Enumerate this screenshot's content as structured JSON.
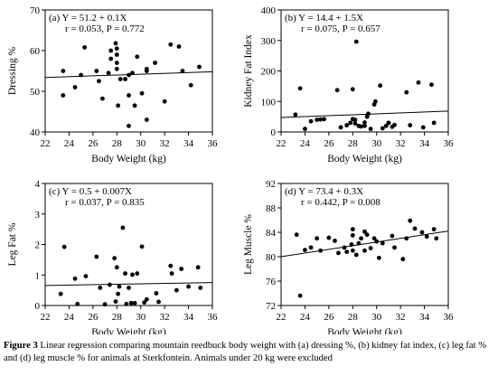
{
  "chart_data": [
    {
      "type": "scatter",
      "panel": "(a)",
      "equation": "Y = 51.2 + 0.1X",
      "stats": "r = 0.053, P = 0.772",
      "xlabel": "Body Weight (kg)",
      "ylabel": "Dressing %",
      "xlim": [
        22,
        36
      ],
      "ylim": [
        40,
        70
      ],
      "xticks": [
        22,
        24,
        26,
        28,
        30,
        32,
        34,
        36
      ],
      "yticks": [
        40,
        50,
        60,
        70
      ],
      "grid": false,
      "regression": {
        "intercept": 51.2,
        "slope": 0.1
      },
      "points": [
        [
          23.5,
          55.0
        ],
        [
          23.5,
          49.0
        ],
        [
          24.5,
          51.0
        ],
        [
          25.0,
          54.0
        ],
        [
          25.3,
          60.8
        ],
        [
          26.3,
          55.0
        ],
        [
          26.5,
          52.5
        ],
        [
          26.8,
          48.2
        ],
        [
          27.3,
          54.5
        ],
        [
          27.5,
          58.0
        ],
        [
          27.5,
          60.0
        ],
        [
          27.9,
          61.8
        ],
        [
          28.0,
          59.0
        ],
        [
          28.0,
          60.5
        ],
        [
          28.0,
          55.5
        ],
        [
          28.0,
          57.0
        ],
        [
          28.1,
          46.5
        ],
        [
          28.3,
          53.0
        ],
        [
          28.7,
          53.0
        ],
        [
          29.0,
          49.0
        ],
        [
          29.0,
          54.0
        ],
        [
          29.0,
          41.5
        ],
        [
          29.3,
          54.5
        ],
        [
          29.5,
          46.5
        ],
        [
          29.7,
          58.5
        ],
        [
          30.1,
          49.5
        ],
        [
          30.5,
          43.0
        ],
        [
          30.5,
          55.5
        ],
        [
          30.5,
          55.0
        ],
        [
          31.2,
          57.0
        ],
        [
          32.0,
          47.5
        ],
        [
          32.5,
          61.5
        ],
        [
          33.2,
          61.0
        ],
        [
          33.5,
          55.0
        ],
        [
          34.2,
          51.5
        ],
        [
          34.9,
          56.0
        ]
      ]
    },
    {
      "type": "scatter",
      "panel": "(b)",
      "equation": "Y = 14.4 + 1.5X",
      "stats": "r = 0.075, P = 0.657",
      "xlabel": "Body Weight (kg)",
      "ylabel": "Kidney Fat Index",
      "xlim": [
        22,
        36
      ],
      "ylim": [
        0,
        400
      ],
      "xticks": [
        22,
        24,
        26,
        28,
        30,
        32,
        34,
        36
      ],
      "yticks": [
        0,
        100,
        200,
        300,
        400
      ],
      "grid": false,
      "regression": {
        "intercept": 14.4,
        "slope": 1.5
      },
      "points": [
        [
          23.2,
          57
        ],
        [
          23.6,
          143
        ],
        [
          24.0,
          10
        ],
        [
          24.5,
          35
        ],
        [
          25.0,
          40
        ],
        [
          25.3,
          41
        ],
        [
          25.6,
          42
        ],
        [
          26.7,
          137
        ],
        [
          27.0,
          15
        ],
        [
          27.5,
          22
        ],
        [
          27.8,
          30
        ],
        [
          28.0,
          140
        ],
        [
          28.0,
          42
        ],
        [
          28.2,
          40
        ],
        [
          28.2,
          28
        ],
        [
          28.3,
          296
        ],
        [
          28.5,
          20
        ],
        [
          28.7,
          18
        ],
        [
          29.0,
          31
        ],
        [
          29.0,
          20
        ],
        [
          29.2,
          50
        ],
        [
          29.3,
          60
        ],
        [
          29.5,
          10
        ],
        [
          29.8,
          90
        ],
        [
          29.9,
          100
        ],
        [
          30.3,
          152
        ],
        [
          30.5,
          12
        ],
        [
          30.8,
          20
        ],
        [
          31.0,
          30
        ],
        [
          31.3,
          17
        ],
        [
          31.5,
          23
        ],
        [
          32.5,
          130
        ],
        [
          32.8,
          22
        ],
        [
          33.5,
          162
        ],
        [
          33.9,
          15
        ],
        [
          34.6,
          155
        ],
        [
          34.8,
          30
        ]
      ]
    },
    {
      "type": "scatter",
      "panel": "(c)",
      "equation": "Y = 0.5 + 0.007X",
      "stats": "r = 0.037, P = 0.835",
      "xlabel": "Body Weight (kg)",
      "ylabel": "Leg Fat %",
      "xlim": [
        22,
        36
      ],
      "ylim": [
        0,
        4
      ],
      "xticks": [
        22,
        24,
        26,
        28,
        30,
        32,
        34,
        36
      ],
      "yticks": [
        0,
        1,
        2,
        3,
        4
      ],
      "grid": false,
      "regression": {
        "intercept": 0.5,
        "slope": 0.007
      },
      "points": [
        [
          23.3,
          0.38
        ],
        [
          23.6,
          1.92
        ],
        [
          24.5,
          0.88
        ],
        [
          24.7,
          0.05
        ],
        [
          25.4,
          0.96
        ],
        [
          26.3,
          1.6
        ],
        [
          26.6,
          0.58
        ],
        [
          27.0,
          0.04
        ],
        [
          27.4,
          0.68
        ],
        [
          27.8,
          1.55
        ],
        [
          27.9,
          0.13
        ],
        [
          28.0,
          1.25
        ],
        [
          28.1,
          0.38
        ],
        [
          28.2,
          0.62
        ],
        [
          28.5,
          2.55
        ],
        [
          28.7,
          1.05
        ],
        [
          28.8,
          0.05
        ],
        [
          29.0,
          0.58
        ],
        [
          29.2,
          0.08
        ],
        [
          29.3,
          1.01
        ],
        [
          29.5,
          0.08
        ],
        [
          29.7,
          1.05
        ],
        [
          30.1,
          1.93
        ],
        [
          30.3,
          0.1
        ],
        [
          30.5,
          0.2
        ],
        [
          31.3,
          0.4
        ],
        [
          31.5,
          0.12
        ],
        [
          32.5,
          1.3
        ],
        [
          32.6,
          1.05
        ],
        [
          33.0,
          0.5
        ],
        [
          33.4,
          1.2
        ],
        [
          34.0,
          0.62
        ],
        [
          34.8,
          1.25
        ],
        [
          35.0,
          0.58
        ]
      ]
    },
    {
      "type": "scatter",
      "panel": "(d)",
      "equation": "Y = 73.4 + 0.3X",
      "stats": "r = 0.442, P = 0.008",
      "xlabel": "Body Weight (kg)",
      "ylabel": "Leg Muscle %",
      "xlim": [
        22,
        36
      ],
      "ylim": [
        72,
        92
      ],
      "xticks": [
        22,
        24,
        26,
        28,
        30,
        32,
        34,
        36
      ],
      "yticks": [
        72,
        76,
        80,
        84,
        88,
        92
      ],
      "grid": false,
      "regression": {
        "intercept": 73.4,
        "slope": 0.3
      },
      "points": [
        [
          23.3,
          83.6
        ],
        [
          23.6,
          73.6
        ],
        [
          24.0,
          81.1
        ],
        [
          24.5,
          81.5
        ],
        [
          25.0,
          83.0
        ],
        [
          25.3,
          81.0
        ],
        [
          26.0,
          83.1
        ],
        [
          26.5,
          82.6
        ],
        [
          26.8,
          80.6
        ],
        [
          27.3,
          81.5
        ],
        [
          27.5,
          80.8
        ],
        [
          27.9,
          82.0
        ],
        [
          28.0,
          83.5
        ],
        [
          28.0,
          84.5
        ],
        [
          28.0,
          81.0
        ],
        [
          28.3,
          80.3
        ],
        [
          28.5,
          82.2
        ],
        [
          28.7,
          83.0
        ],
        [
          29.0,
          84.1
        ],
        [
          29.0,
          81.0
        ],
        [
          29.2,
          83.6
        ],
        [
          29.5,
          81.4
        ],
        [
          29.8,
          83.0
        ],
        [
          30.0,
          82.5
        ],
        [
          30.2,
          79.8
        ],
        [
          30.5,
          82.2
        ],
        [
          31.3,
          83.4
        ],
        [
          31.5,
          81.5
        ],
        [
          32.2,
          79.6
        ],
        [
          32.5,
          83.0
        ],
        [
          32.8,
          85.9
        ],
        [
          33.2,
          84.6
        ],
        [
          33.8,
          84.0
        ],
        [
          34.2,
          83.3
        ],
        [
          34.8,
          84.5
        ],
        [
          35.0,
          83.0
        ]
      ]
    }
  ],
  "caption": {
    "label": "Figure 3",
    "text": " Linear regression comparing mountain reedbuck body weight with (a) dressing %, (b) kidney fat index, (c) leg fat % and (d) leg muscle % for animals at Sterkfontein. Animals under 20 kg were excluded"
  }
}
